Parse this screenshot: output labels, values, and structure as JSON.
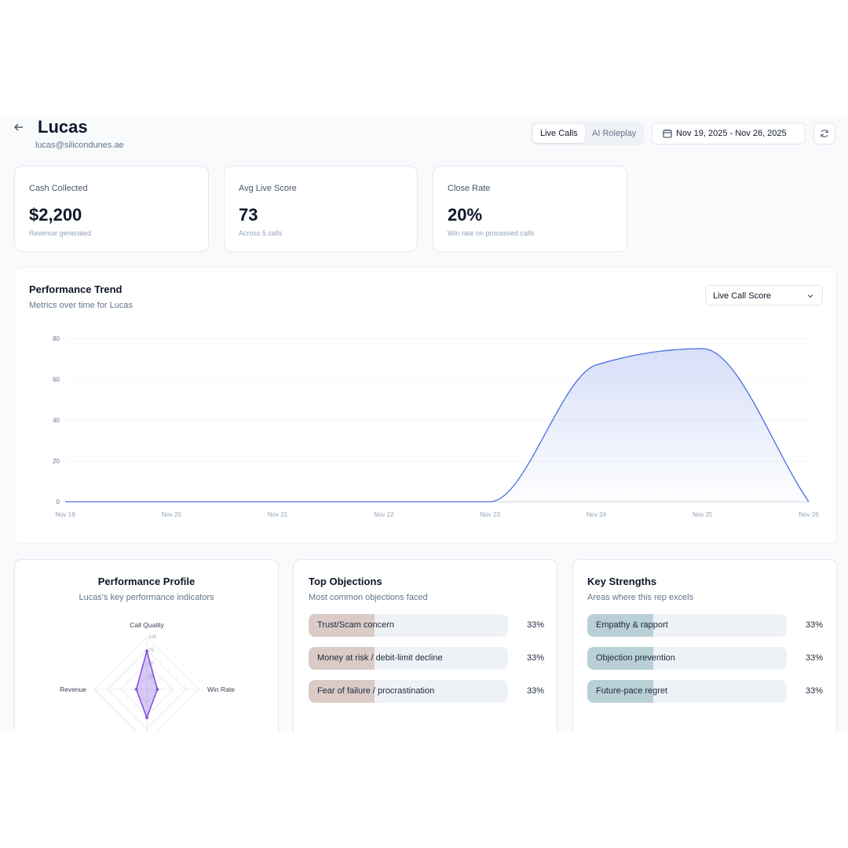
{
  "header": {
    "title": "Lucas",
    "email": "lucas@silicondunes.ae",
    "tabs": [
      "Live Calls",
      "AI Roleplay"
    ],
    "active_tab": 0,
    "date_range": "Nov 19, 2025 - Nov 26, 2025"
  },
  "kpis": [
    {
      "label": "Cash Collected",
      "value": "$2,200",
      "caption": "Revenue generated"
    },
    {
      "label": "Avg Live Score",
      "value": "73",
      "caption": "Across 5 calls"
    },
    {
      "label": "Close Rate",
      "value": "20%",
      "caption": "Win rate on processed calls"
    }
  ],
  "chart_data": [
    {
      "type": "line",
      "title": "Performance Trend",
      "subtitle": "Metrics over time for Lucas",
      "metric_select": "Live Call Score",
      "categories": [
        "Nov 19",
        "Nov 20",
        "Nov 21",
        "Nov 22",
        "Nov 23",
        "Nov 24",
        "Nov 25",
        "Nov 26"
      ],
      "values": [
        0,
        0,
        0,
        0,
        0,
        67,
        75,
        0
      ],
      "color": "#4a6ee0",
      "ylim": [
        0,
        80
      ],
      "yticks": [
        0,
        20,
        40,
        60,
        80
      ],
      "grid": true
    },
    {
      "type": "radar",
      "title": "Performance Profile",
      "subtitle": "Lucas's key performance indicators",
      "categories": [
        "Call Quality",
        "Win Rate",
        null,
        "Revenue"
      ],
      "values": [
        73,
        20,
        54,
        20
      ],
      "color": "#7c4fe0",
      "rlim": [
        0,
        100
      ],
      "rticks": [
        25,
        50,
        75,
        100
      ]
    },
    {
      "type": "hbar",
      "title": "Top Objections",
      "subtitle": "Most common objections faced",
      "categories": [
        "Trust/Scam concern",
        "Money at risk / debit-limit decline",
        "Fear of failure / procrastination"
      ],
      "values": [
        33,
        33,
        33
      ],
      "value_labels": [
        "33%",
        "33%",
        "33%"
      ],
      "color": "#dacbc7",
      "xlim": [
        0,
        100
      ]
    },
    {
      "type": "hbar",
      "title": "Key Strengths",
      "subtitle": "Areas where this rep excels",
      "categories": [
        "Empathy & rapport",
        "Objection prevention",
        "Future-pace regret"
      ],
      "values": [
        33,
        33,
        33
      ],
      "value_labels": [
        "33%",
        "33%",
        "33%"
      ],
      "color": "#b8d0d6",
      "xlim": [
        0,
        100
      ]
    }
  ]
}
